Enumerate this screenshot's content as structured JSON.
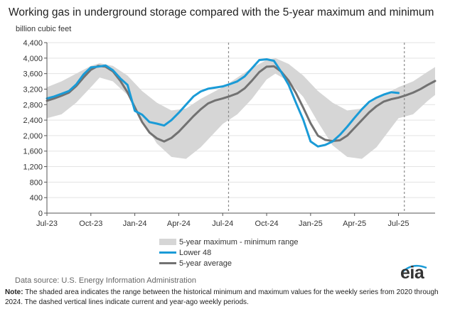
{
  "chart_data": {
    "type": "area",
    "title": "Working gas in underground  storage compared with the 5-year maximum and minimum",
    "ylabel": "billion cubic feet",
    "ylim": [
      0,
      4400
    ],
    "yticks": [
      0,
      400,
      800,
      1200,
      1600,
      2000,
      2400,
      2800,
      3200,
      3600,
      4000,
      4400
    ],
    "ytick_labels": [
      "0",
      "400",
      "800",
      "1,200",
      "1,600",
      "2,000",
      "2,400",
      "2,800",
      "3,200",
      "3,600",
      "4,000",
      "4,400"
    ],
    "x_unit": "months since Jul 2023",
    "xlim": [
      0,
      26.5
    ],
    "xticks": [
      0,
      3,
      6,
      9,
      12,
      15,
      18,
      21,
      24
    ],
    "xtick_labels": [
      "Jul-23",
      "Oct-23",
      "Jan-24",
      "Apr-24",
      "Jul-24",
      "Oct-24",
      "Jan-25",
      "Apr-25",
      "Jul-25"
    ],
    "current_week_markers": [
      12.4,
      24.4
    ],
    "band": {
      "name": "5-year maximum - minimum range",
      "x": [
        0,
        1,
        2,
        3,
        3.6,
        4.5,
        5.5,
        6.5,
        7.5,
        8.5,
        9.5,
        10.5,
        12,
        13,
        14,
        15,
        15.6,
        16.5,
        17.5,
        18.5,
        19.5,
        20.5,
        21.5,
        22.5,
        24,
        25,
        26,
        26.5
      ],
      "upper": [
        3250,
        3400,
        3600,
        3800,
        3870,
        3800,
        3550,
        3150,
        2850,
        2650,
        2700,
        2950,
        3250,
        3500,
        3750,
        3950,
        4000,
        3850,
        3550,
        3150,
        2850,
        2650,
        2700,
        2950,
        3250,
        3400,
        3650,
        3770
      ],
      "lower": [
        2450,
        2550,
        2850,
        3250,
        3500,
        3400,
        3050,
        2400,
        1800,
        1450,
        1400,
        1700,
        2300,
        2550,
        2950,
        3450,
        3600,
        3400,
        3000,
        2350,
        1750,
        1450,
        1400,
        1700,
        2450,
        2550,
        2900,
        3050
      ]
    },
    "series": [
      {
        "name": "Lower 48",
        "color": "#1a9bd7",
        "x": [
          0,
          0.5,
          1,
          1.5,
          2,
          2.5,
          3,
          3.5,
          4,
          4.5,
          5,
          5.5,
          6,
          6.5,
          7,
          7.5,
          8,
          8.5,
          9,
          9.5,
          10,
          10.5,
          11,
          11.5,
          12,
          12.5,
          13,
          13.5,
          14,
          14.5,
          15,
          15.5,
          16,
          16.5,
          17,
          17.5,
          18,
          18.5,
          19,
          19.5,
          20,
          20.5,
          21,
          21.5,
          22,
          22.5,
          23,
          23.5,
          24
        ],
        "values": [
          2960,
          3010,
          3080,
          3150,
          3320,
          3580,
          3760,
          3780,
          3810,
          3690,
          3480,
          3310,
          2640,
          2540,
          2350,
          2310,
          2260,
          2400,
          2590,
          2800,
          3010,
          3140,
          3210,
          3240,
          3270,
          3330,
          3400,
          3530,
          3740,
          3950,
          3970,
          3930,
          3640,
          3310,
          2850,
          2410,
          1850,
          1720,
          1760,
          1850,
          2020,
          2230,
          2460,
          2680,
          2870,
          2980,
          3060,
          3120,
          3100
        ]
      },
      {
        "name": "5-year average",
        "color": "#727272",
        "x": [
          0,
          0.5,
          1,
          1.5,
          2,
          2.5,
          3,
          3.5,
          4,
          4.5,
          5,
          5.5,
          6,
          6.5,
          7,
          7.5,
          8,
          8.5,
          9,
          9.5,
          10,
          10.5,
          11,
          11.5,
          12,
          12.5,
          13,
          13.5,
          14,
          14.5,
          15,
          15.5,
          16,
          16.5,
          17,
          17.5,
          18,
          18.5,
          19,
          19.5,
          20,
          20.5,
          21,
          21.5,
          22,
          22.5,
          23,
          23.5,
          24,
          24.5,
          25,
          25.5,
          26,
          26.5
        ],
        "values": [
          2900,
          2960,
          3030,
          3110,
          3280,
          3500,
          3700,
          3800,
          3780,
          3660,
          3420,
          3120,
          2730,
          2350,
          2080,
          1930,
          1850,
          1940,
          2100,
          2300,
          2500,
          2680,
          2830,
          2910,
          2960,
          3020,
          3090,
          3220,
          3420,
          3640,
          3780,
          3790,
          3650,
          3420,
          3100,
          2720,
          2320,
          2000,
          1890,
          1860,
          1880,
          2000,
          2200,
          2400,
          2600,
          2760,
          2880,
          2940,
          2980,
          3040,
          3110,
          3200,
          3310,
          3410
        ]
      }
    ],
    "legend": [
      "5-year maximum - minimum range",
      "Lower 48",
      "5-year average"
    ],
    "legend_position": "bottom-center"
  },
  "source_text": "Data source:  U.S. Energy Information Administration",
  "logo_text": "eia",
  "note_label": "Note:",
  "note_text": " The shaded area indicates the range between the historical minimum and maximum values for the weekly series from 2020 through 2024. The dashed vertical lines indicate current and year-ago weekly periods."
}
